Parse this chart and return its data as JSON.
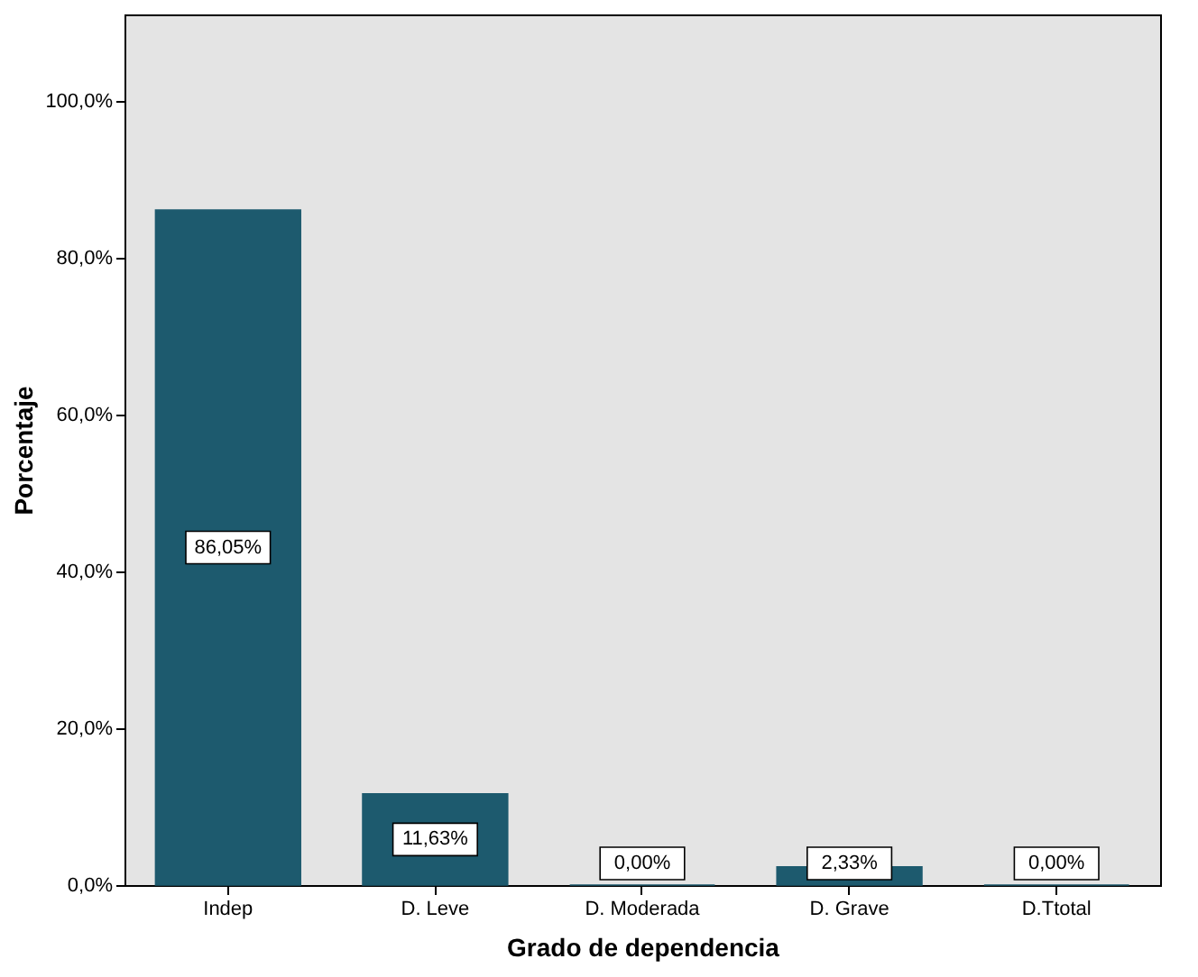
{
  "chart_data": {
    "type": "bar",
    "xlabel": "Grado de dependencia",
    "ylabel": "Porcentaje",
    "categories": [
      "Indep",
      "D. Leve",
      "D. Moderada",
      "D. Grave",
      "D.Ttotal"
    ],
    "values": [
      86.05,
      11.63,
      0,
      2.33,
      0
    ],
    "value_labels": [
      "86,05%",
      "11,63%",
      "0,00%",
      "2,33%",
      "0,00%"
    ],
    "color": "#1d5a6e",
    "ylim": [
      0,
      111
    ],
    "yticks": [
      {
        "value": 0,
        "label": "0,0%"
      },
      {
        "value": 20,
        "label": "20,0%"
      },
      {
        "value": 40,
        "label": "40,0%"
      },
      {
        "value": 60,
        "label": "60,0%"
      },
      {
        "value": 80,
        "label": "80,0%"
      },
      {
        "value": 100,
        "label": "100,0%"
      }
    ]
  }
}
